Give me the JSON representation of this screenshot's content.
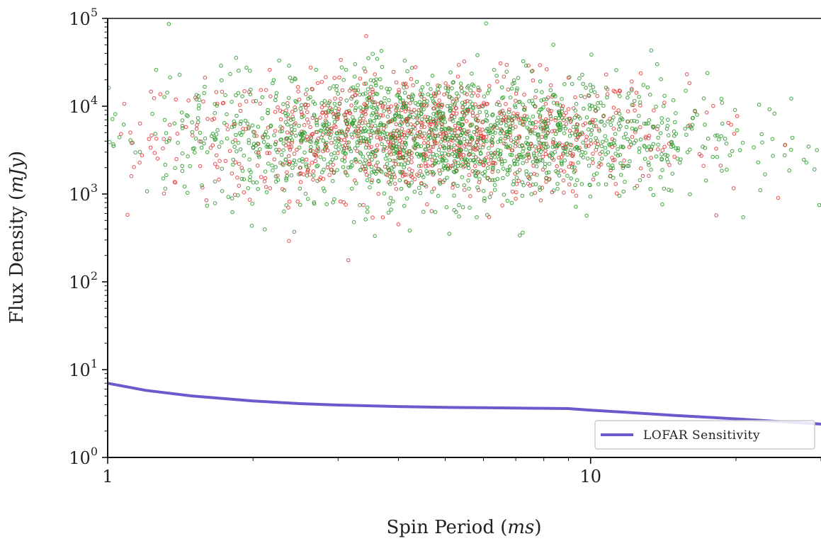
{
  "chart_data": {
    "type": "scatter",
    "title": "",
    "xlabel": "Spin Period (ms)",
    "xlabel_parts": {
      "text": "Spin Period (",
      "var": "ms",
      "close": ")"
    },
    "ylabel": "Flux Density (mJy)",
    "ylabel_parts": {
      "text": "Flux Density (",
      "var": "mJy",
      "close": ")"
    },
    "x_scale": "log",
    "y_scale": "log",
    "xlim": [
      1,
      30
    ],
    "ylim": [
      1,
      100000
    ],
    "x_major_ticks": [
      {
        "value": 1,
        "label": "1"
      },
      {
        "value": 10,
        "label": "10"
      }
    ],
    "y_major_ticks": [
      {
        "value": 1,
        "base": "10",
        "exp": "0"
      },
      {
        "value": 10,
        "base": "10",
        "exp": "1"
      },
      {
        "value": 100,
        "base": "10",
        "exp": "2"
      },
      {
        "value": 1000,
        "base": "10",
        "exp": "3"
      },
      {
        "value": 10000,
        "base": "10",
        "exp": "4"
      },
      {
        "value": 100000,
        "base": "10",
        "exp": "5"
      }
    ],
    "grid": false,
    "legend_position": "bottom-right",
    "series": [
      {
        "name": "",
        "kind": "scatter",
        "color": "#e33b3b",
        "marker": "open-circle",
        "count": 950,
        "x_center": 4.5,
        "x_spread_decades": 0.27,
        "y_center": 4500,
        "y_spread_decades": 0.35
      },
      {
        "name": "",
        "kind": "scatter",
        "color": "#2f9a2f",
        "marker": "open-circle",
        "count": 1750,
        "x_center": 4.8,
        "x_spread_decades": 0.28,
        "y_center": 4500,
        "y_spread_decades": 0.36
      },
      {
        "name": "LOFAR Sensitivity",
        "kind": "line",
        "color": "#6a5acd",
        "x": [
          1,
          1.2,
          1.5,
          2,
          2.5,
          3,
          4,
          5,
          6,
          7,
          8,
          9,
          10,
          12,
          15,
          20,
          25,
          30
        ],
        "y": [
          7.0,
          5.8,
          5.0,
          4.4,
          4.1,
          3.95,
          3.8,
          3.72,
          3.68,
          3.65,
          3.63,
          3.6,
          3.45,
          3.25,
          3.0,
          2.75,
          2.55,
          2.4
        ]
      }
    ]
  }
}
